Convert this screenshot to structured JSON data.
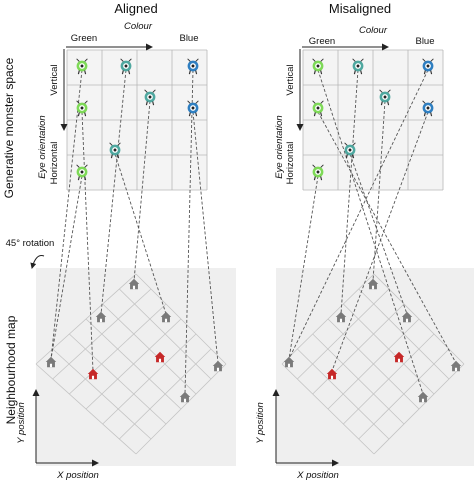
{
  "panels": {
    "aligned": {
      "title": "Aligned"
    },
    "misaligned": {
      "title": "Misaligned"
    }
  },
  "row_labels": {
    "top": "Generative monster space",
    "bottom": "Neighbourhood map"
  },
  "monster_axes": {
    "colour": "Colour",
    "green": "Green",
    "blue": "Blue",
    "eye_orientation": "Eye orientation",
    "vertical": "Vertical",
    "horizontal": "Horizontal"
  },
  "rotation_label": "45° rotation",
  "map_axes": {
    "x": "X position",
    "y": "Y position"
  },
  "colors": {
    "monster_green": "#7ed957",
    "monster_teal": "#4fa8a0",
    "monster_blue": "#2f7fc1",
    "house_gray": "#7a7a7a",
    "house_red": "#c62828"
  }
}
